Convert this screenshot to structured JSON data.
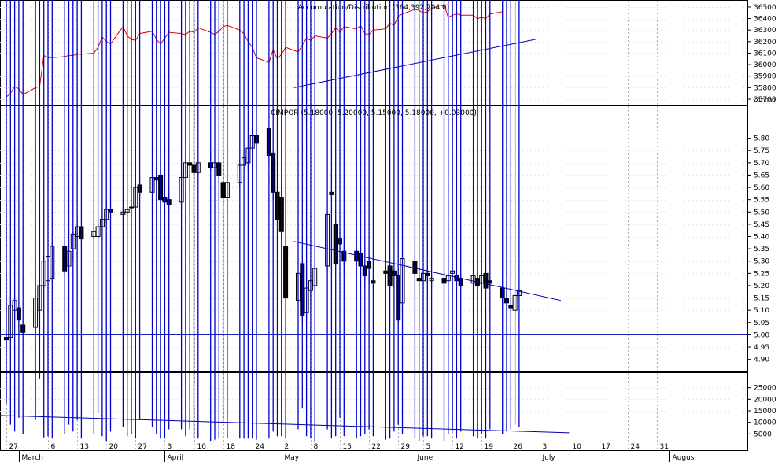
{
  "chart_data": [
    {
      "type": "line",
      "panel": "accumulation-distribution",
      "title": "Accumulation/Distribution (364,392,704.0)",
      "y_ticks": [
        "35700",
        "35800",
        "35900",
        "36000",
        "36100",
        "36200",
        "36300",
        "36400",
        "36500"
      ],
      "scale_note": "x 10000",
      "ylim": [
        35700,
        36520
      ],
      "series": [
        {
          "values": [
            35720,
            35750,
            35810,
            35790,
            35740,
            35800,
            35810,
            36080,
            36060,
            36060,
            36070,
            36080,
            36080,
            36090,
            36090,
            36100,
            36150,
            36240,
            36200,
            36180,
            36330,
            36250,
            36220,
            36210,
            36270,
            36290,
            36220,
            36180,
            36230,
            36280,
            36270,
            36260,
            36290,
            36280,
            36320,
            36280,
            36260,
            36290,
            36330,
            36340,
            36300,
            36270,
            36200,
            36150,
            36060,
            36020,
            36130,
            36050,
            36090,
            36150,
            36110,
            36170,
            36230,
            36210,
            36250,
            36230,
            36270,
            36320,
            36280,
            36330,
            36310,
            36340,
            36270,
            36260,
            36300,
            36310,
            36360,
            36340,
            36420,
            36440,
            36480,
            36470,
            36450,
            36460,
            36490,
            36520,
            36410,
            36430,
            36440,
            36430,
            36430,
            36400,
            36410,
            36400,
            36440,
            36460
          ]
        }
      ],
      "trendline": {
        "x0_day": 69,
        "y0": 35800,
        "x1_day": 127,
        "y1": 36220
      }
    },
    {
      "type": "candlestick",
      "panel": "price",
      "title": "CIMPOR (5.18000, 5.20000, 5.15000, 5.18000, +0.03000)",
      "y_ticks": [
        "4.90",
        "4.95",
        "5.00",
        "5.05",
        "5.10",
        "5.15",
        "5.20",
        "5.25",
        "5.30",
        "5.35",
        "5.40",
        "5.45",
        "5.50",
        "5.55",
        "5.60",
        "5.65",
        "5.70",
        "5.75",
        "5.80"
      ],
      "ylim": [
        4.87,
        5.85
      ],
      "series": [
        {
          "name": "candles",
          "values": [
            [
              4.99,
              5.0,
              4.96,
              4.98
            ],
            [
              4.99,
              5.14,
              4.98,
              5.12
            ],
            [
              5.1,
              5.16,
              5.07,
              5.14
            ],
            [
              5.11,
              5.15,
              5.03,
              5.06
            ],
            [
              5.04,
              5.02,
              5.0,
              5.01
            ],
            [
              5.03,
              5.16,
              5.01,
              5.15
            ],
            [
              5.1,
              5.22,
              5.09,
              5.2
            ],
            [
              5.2,
              5.32,
              5.19,
              5.3
            ],
            [
              5.22,
              5.35,
              5.21,
              5.32
            ],
            [
              5.23,
              5.38,
              5.22,
              5.36
            ],
            [
              5.36,
              5.34,
              5.24,
              5.26
            ],
            [
              5.28,
              5.36,
              5.27,
              5.34
            ],
            [
              5.35,
              5.42,
              5.3,
              5.41
            ],
            [
              5.4,
              5.47,
              5.38,
              5.44
            ],
            [
              5.44,
              5.43,
              5.38,
              5.39
            ],
            [
              5.4,
              5.44,
              5.39,
              5.42
            ],
            [
              5.4,
              5.45,
              5.39,
              5.44
            ],
            [
              5.44,
              5.49,
              5.4,
              5.47
            ],
            [
              5.47,
              5.55,
              5.45,
              5.51
            ],
            [
              5.51,
              5.54,
              5.48,
              5.5
            ],
            [
              5.49,
              5.52,
              5.48,
              5.5
            ],
            [
              5.5,
              5.52,
              5.48,
              5.51
            ],
            [
              5.52,
              5.51,
              5.48,
              5.52
            ],
            [
              5.52,
              5.62,
              5.51,
              5.6
            ],
            [
              5.61,
              5.63,
              5.56,
              5.58
            ],
            [
              5.58,
              5.65,
              5.57,
              5.64
            ],
            [
              5.64,
              5.68,
              5.62,
              5.63
            ],
            [
              5.65,
              5.67,
              5.55,
              5.55
            ],
            [
              5.56,
              5.66,
              5.52,
              5.54
            ],
            [
              5.55,
              5.58,
              5.52,
              5.53
            ],
            [
              5.54,
              5.66,
              5.53,
              5.64
            ],
            [
              5.64,
              5.72,
              5.63,
              5.7
            ],
            [
              5.7,
              5.74,
              5.64,
              5.69
            ],
            [
              5.69,
              5.76,
              5.65,
              5.66
            ],
            [
              5.66,
              5.71,
              5.64,
              5.7
            ],
            [
              5.7,
              5.74,
              5.67,
              5.68
            ],
            [
              5.68,
              5.72,
              5.66,
              5.7
            ],
            [
              5.7,
              5.75,
              5.61,
              5.65
            ],
            [
              5.62,
              5.68,
              5.53,
              5.56
            ],
            [
              5.56,
              5.63,
              5.53,
              5.62
            ],
            [
              5.62,
              5.71,
              5.6,
              5.69
            ],
            [
              5.69,
              5.76,
              5.67,
              5.72
            ],
            [
              5.7,
              5.78,
              5.67,
              5.76
            ],
            [
              5.76,
              5.84,
              5.74,
              5.81
            ],
            [
              5.81,
              5.82,
              5.74,
              5.78
            ],
            [
              5.84,
              5.82,
              5.7,
              5.73
            ],
            [
              5.74,
              5.73,
              5.55,
              5.58
            ],
            [
              5.58,
              5.63,
              5.47,
              5.47
            ],
            [
              5.56,
              5.6,
              5.4,
              5.42
            ],
            [
              5.36,
              5.28,
              5.1,
              5.15
            ],
            [
              5.14,
              5.28,
              5.12,
              5.25
            ],
            [
              5.29,
              5.3,
              5.05,
              5.08
            ],
            [
              5.09,
              5.21,
              5.06,
              5.19
            ],
            [
              5.18,
              5.21,
              5.13,
              5.22
            ],
            [
              5.2,
              5.31,
              5.19,
              5.27
            ],
            [
              5.28,
              5.5,
              5.26,
              5.49
            ],
            [
              5.58,
              5.66,
              5.56,
              5.57
            ],
            [
              5.45,
              5.47,
              5.28,
              5.29
            ],
            [
              5.39,
              5.4,
              5.14,
              5.37
            ],
            [
              5.34,
              5.36,
              5.28,
              5.3
            ],
            [
              5.34,
              5.36,
              5.28,
              5.3
            ],
            [
              5.33,
              5.35,
              5.21,
              5.28
            ],
            [
              5.28,
              5.3,
              5.19,
              5.24
            ],
            [
              5.3,
              5.31,
              5.21,
              5.27
            ],
            [
              5.22,
              5.24,
              5.19,
              5.21
            ],
            [
              5.26,
              5.28,
              5.19,
              5.25
            ],
            [
              5.28,
              5.25,
              5.19,
              5.2
            ],
            [
              5.26,
              5.27,
              5.19,
              5.24
            ],
            [
              5.24,
              5.25,
              5.05,
              5.06
            ],
            [
              5.13,
              5.35,
              5.12,
              5.31
            ],
            [
              5.3,
              5.33,
              5.24,
              5.25
            ],
            [
              5.23,
              5.26,
              5.18,
              5.22
            ],
            [
              5.22,
              5.27,
              5.2,
              5.25
            ],
            [
              5.25,
              5.27,
              5.21,
              5.24
            ],
            [
              5.22,
              5.24,
              5.19,
              5.23
            ],
            [
              5.23,
              5.24,
              5.19,
              5.21
            ],
            [
              5.22,
              5.26,
              5.2,
              5.24
            ],
            [
              5.25,
              5.29,
              5.23,
              5.26
            ],
            [
              5.24,
              5.25,
              5.2,
              5.22
            ],
            [
              5.23,
              5.25,
              5.19,
              5.2
            ],
            [
              5.21,
              5.26,
              5.2,
              5.24
            ],
            [
              5.23,
              5.26,
              5.18,
              5.2
            ],
            [
              5.21,
              5.25,
              5.2,
              5.24
            ],
            [
              5.25,
              5.25,
              5.18,
              5.19
            ],
            [
              5.22,
              5.23,
              5.2,
              5.21
            ],
            [
              5.19,
              5.2,
              5.12,
              5.15
            ],
            [
              5.15,
              5.16,
              5.08,
              5.13
            ],
            [
              5.12,
              5.14,
              5.09,
              5.11
            ],
            [
              5.1,
              5.16,
              5.08,
              5.16
            ],
            [
              5.16,
              5.2,
              5.15,
              5.18
            ]
          ]
        }
      ],
      "support_level": 5.0,
      "trendline": {
        "x0_day": 69,
        "y0": 5.38,
        "x1_day": 133,
        "y1": 5.14
      }
    },
    {
      "type": "bar",
      "panel": "volume",
      "y_ticks": [
        "5000",
        "10000",
        "15000",
        "20000",
        "25000"
      ],
      "ylim": [
        0,
        30000
      ],
      "series": [
        {
          "values": [
            18000,
            9000,
            6000,
            12000,
            5000,
            11000,
            29000,
            3500,
            4000,
            3000,
            5000,
            9000,
            6000,
            11000,
            3000,
            5000,
            14000,
            4000,
            2000,
            6000,
            8000,
            4000,
            5000,
            3000,
            11000,
            8000,
            5000,
            3000,
            3000,
            7000,
            7000,
            4000,
            7000,
            3000,
            3000,
            2000,
            2500,
            3000,
            11000,
            3000,
            3000,
            3000,
            3000,
            3000,
            2500,
            3000,
            6000,
            4000,
            4000,
            3000,
            7000,
            16000,
            4000,
            3000,
            1500,
            7000,
            3000,
            4000,
            12000,
            4000,
            3000,
            4000,
            5000,
            7000,
            4000,
            2500,
            3000,
            6000,
            9000,
            5000,
            3000,
            2000,
            4000,
            4000,
            3000,
            2000,
            5000,
            6000,
            3000,
            6000,
            4000,
            3000,
            5000,
            3000,
            7000,
            5000,
            6000,
            7000,
            9000,
            8000
          ]
        }
      ],
      "trendline": {
        "x0_day": 97,
        "y0": 5500,
        "x1_day": 108,
        "y1": 13000
      }
    }
  ],
  "x_axis": {
    "day_labels": [
      {
        "day": 0,
        "text": "27"
      },
      {
        "day": 10,
        "text": "6"
      },
      {
        "day": 17,
        "text": "13"
      },
      {
        "day": 24,
        "text": "20"
      },
      {
        "day": 31,
        "text": "27"
      },
      {
        "day": 38,
        "text": "3"
      },
      {
        "day": 45,
        "text": "10"
      },
      {
        "day": 52,
        "text": "18"
      },
      {
        "day": 59,
        "text": "24"
      },
      {
        "day": 66,
        "text": "2"
      },
      {
        "day": 73,
        "text": "8"
      },
      {
        "day": 80,
        "text": "15"
      },
      {
        "day": 87,
        "text": "22"
      },
      {
        "day": 94,
        "text": "29"
      },
      {
        "day": 100,
        "text": "5"
      },
      {
        "day": 107,
        "text": "12"
      },
      {
        "day": 114,
        "text": "19"
      },
      {
        "day": 121,
        "text": "26"
      },
      {
        "day": 128,
        "text": "3"
      },
      {
        "day": 135,
        "text": "10"
      },
      {
        "day": 142,
        "text": "17"
      },
      {
        "day": 149,
        "text": "24"
      },
      {
        "day": 156,
        "text": "31"
      }
    ],
    "month_labels": [
      {
        "day": 3,
        "text": "March"
      },
      {
        "day": 38,
        "text": "April"
      },
      {
        "day": 66,
        "text": "May"
      },
      {
        "day": 98,
        "text": "June"
      },
      {
        "day": 128,
        "text": "July"
      },
      {
        "day": 159,
        "text": "Augus"
      }
    ]
  },
  "colors": {
    "ad_line": "#e00000",
    "trend": "#0000b0",
    "volume": "#0000c8",
    "candle": "#000000",
    "grid": "#b0b0b0"
  }
}
